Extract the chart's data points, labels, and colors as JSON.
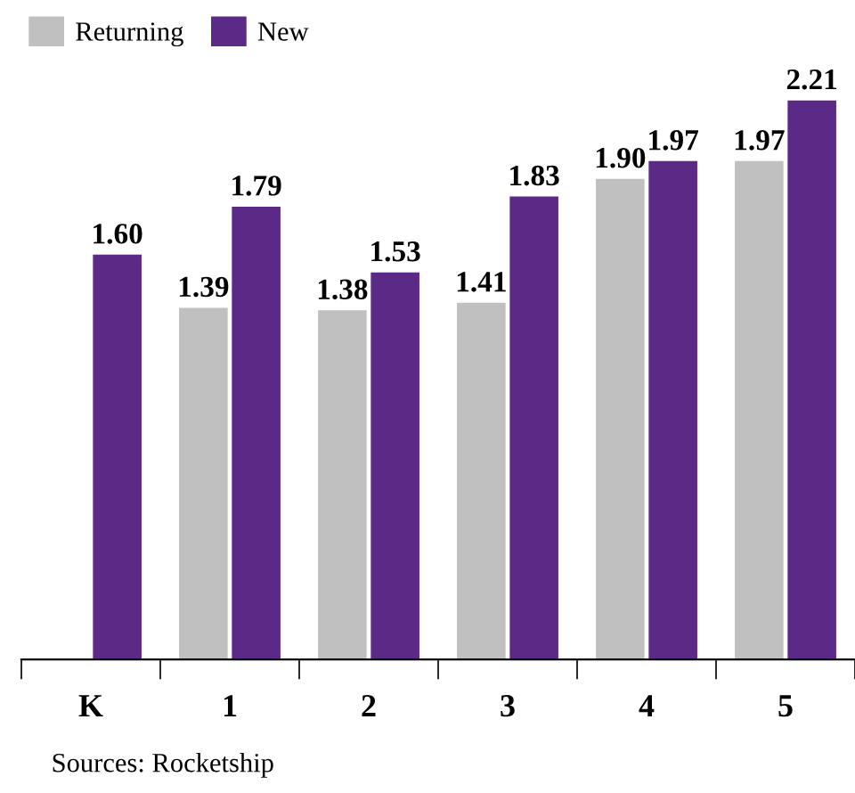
{
  "chart_data": {
    "type": "bar",
    "categories": [
      "K",
      "1",
      "2",
      "3",
      "4",
      "5"
    ],
    "series": [
      {
        "name": "Returning",
        "color": "#c0c0c0",
        "values": [
          null,
          1.39,
          1.38,
          1.41,
          1.9,
          1.97
        ],
        "value_labels": [
          null,
          "1.39",
          "1.38",
          "1.41",
          "1.90",
          "1.97"
        ]
      },
      {
        "name": "New",
        "color": "#5b2a86",
        "values": [
          1.6,
          1.79,
          1.53,
          1.83,
          1.97,
          2.21
        ],
        "value_labels": [
          "1.60",
          "1.79",
          "1.53",
          "1.83",
          "1.97",
          "2.21"
        ]
      }
    ],
    "legend": "top left",
    "grid": false,
    "annotations": [
      "Sources: Rocketship"
    ]
  }
}
